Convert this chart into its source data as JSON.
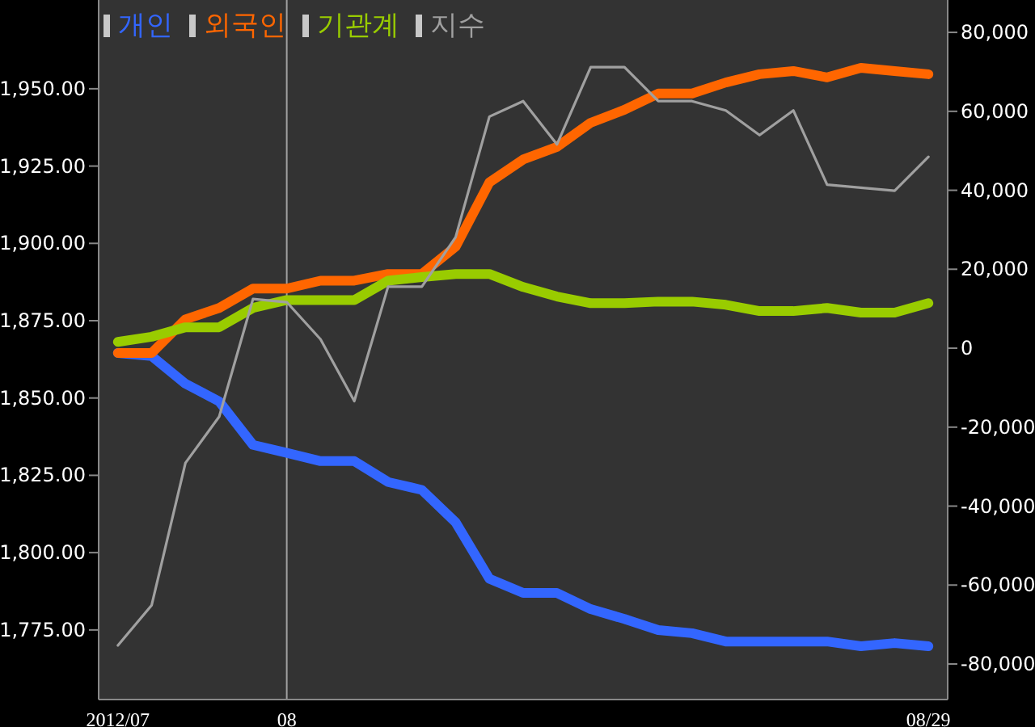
{
  "chart_data": {
    "type": "line",
    "categories": [
      "2012/07",
      null,
      null,
      null,
      null,
      "08",
      null,
      null,
      null,
      null,
      null,
      null,
      null,
      null,
      null,
      null,
      null,
      null,
      null,
      null,
      null,
      null,
      null,
      null,
      "08/29"
    ],
    "series": [
      {
        "name": "개인",
        "color": "#3366ff",
        "axis": "y2",
        "values": [
          -1200,
          -2000,
          -9000,
          -13500,
          -24500,
          -26500,
          -28600,
          -28600,
          -33900,
          -35900,
          -44100,
          -58400,
          -62000,
          -62000,
          -66100,
          -68600,
          -71400,
          -72200,
          -74300,
          -74300,
          -74300,
          -74300,
          -75500,
          -74700,
          -75500
        ]
      },
      {
        "name": "외국인",
        "color": "#ff6600",
        "axis": "y2",
        "values": [
          -1200,
          -1200,
          7300,
          10200,
          15100,
          15100,
          17100,
          17100,
          18800,
          18800,
          25700,
          42000,
          47800,
          51000,
          57100,
          60400,
          64500,
          64500,
          67300,
          69400,
          70200,
          68600,
          71000,
          70200,
          69400
        ]
      },
      {
        "name": "기관계",
        "color": "#99cc00",
        "axis": "y2",
        "values": [
          1600,
          2900,
          5300,
          5300,
          10200,
          12200,
          12200,
          12200,
          17100,
          18000,
          18800,
          18800,
          15500,
          13100,
          11400,
          11400,
          11800,
          11800,
          11000,
          9400,
          9400,
          10200,
          9000,
          9000,
          11400
        ]
      },
      {
        "name": "지수",
        "color": "#a0a0a0",
        "axis": "y",
        "values": [
          1770,
          1783,
          1829,
          1844,
          1882,
          1881,
          1869,
          1849,
          1886,
          1886,
          1902,
          1941,
          1946,
          1932,
          1957,
          1957,
          1946,
          1946,
          1943,
          1935,
          1943,
          1919,
          1918,
          1917,
          1928
        ]
      }
    ],
    "ylim": [
      1752.5,
      1978.7
    ],
    "yticks": [
      {
        "value": 1775,
        "label": "1,775.00"
      },
      {
        "value": 1800,
        "label": "1,800.00"
      },
      {
        "value": 1825,
        "label": "1,825.00"
      },
      {
        "value": 1850,
        "label": "1,850.00"
      },
      {
        "value": 1875,
        "label": "1,875.00"
      },
      {
        "value": 1900,
        "label": "1,900.00"
      },
      {
        "value": 1925,
        "label": "1,925.00"
      },
      {
        "value": 1950,
        "label": "1,950.00"
      }
    ],
    "y2lim": [
      -89000,
      88200
    ],
    "y2ticks": [
      {
        "value": -80000,
        "label": "-80,000"
      },
      {
        "value": -60000,
        "label": "-60,000"
      },
      {
        "value": -40000,
        "label": "-40,000"
      },
      {
        "value": -20000,
        "label": "-20,000"
      },
      {
        "value": 0,
        "label": "0"
      },
      {
        "value": 20000,
        "label": "20,000"
      },
      {
        "value": 40000,
        "label": "40,000"
      },
      {
        "value": 60000,
        "label": "60,000"
      },
      {
        "value": 80000,
        "label": "80,000"
      }
    ],
    "ref_lines": [
      {
        "axis": "x",
        "value": "08",
        "color": "#a0a0a0"
      }
    ],
    "legend": "top left",
    "grid": false,
    "marker": "none",
    "line_style": "solid"
  }
}
